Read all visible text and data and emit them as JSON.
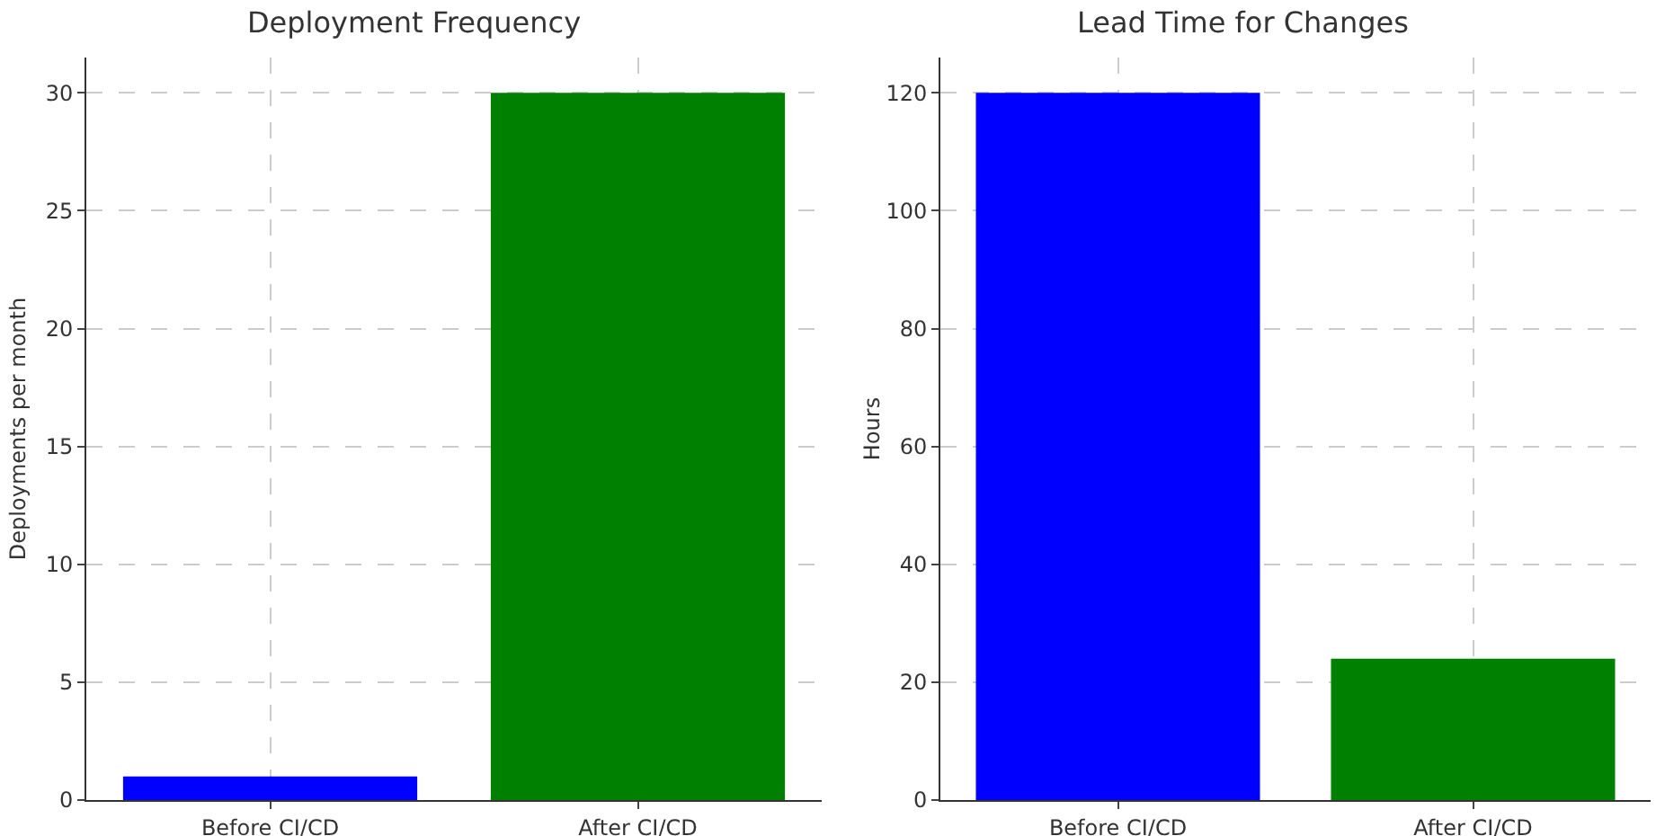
{
  "chart_data": [
    {
      "type": "bar",
      "title": "Deployment Frequency",
      "ylabel": "Deployments per month",
      "categories": [
        "Before CI/CD",
        "After CI/CD"
      ],
      "values": [
        1,
        30
      ],
      "colors": [
        "#0000ff",
        "#008000"
      ],
      "ylim": [
        0,
        31.5
      ],
      "yticks": [
        0,
        5,
        10,
        15,
        20,
        25,
        30
      ],
      "grid": true
    },
    {
      "type": "bar",
      "title": "Lead Time for Changes",
      "ylabel": "Hours",
      "categories": [
        "Before CI/CD",
        "After CI/CD"
      ],
      "values": [
        120,
        24
      ],
      "colors": [
        "#0000ff",
        "#008000"
      ],
      "ylim": [
        0,
        126
      ],
      "yticks": [
        0,
        20,
        40,
        60,
        80,
        100,
        120
      ],
      "grid": true
    }
  ]
}
